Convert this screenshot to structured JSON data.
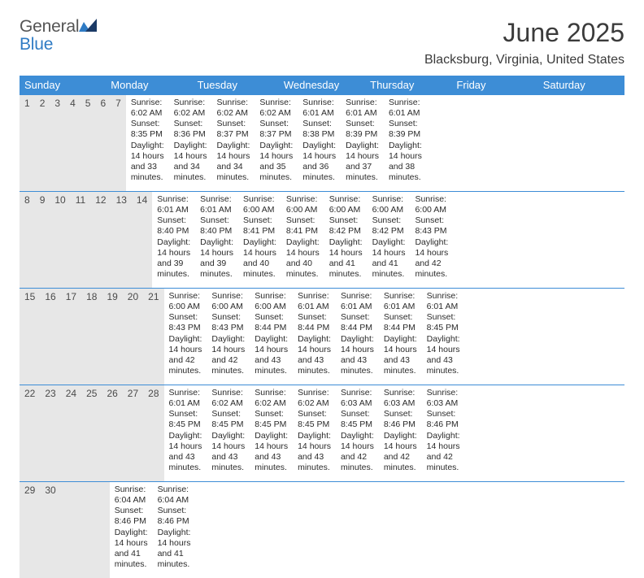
{
  "logo": {
    "word1": "General",
    "word2": "Blue"
  },
  "colors": {
    "header_bg": "#3d8dd6",
    "header_text": "#ffffff",
    "daynum_bg": "#e7e7e7",
    "daynum_text": "#4a4a4a",
    "body_text": "#2b2b2b",
    "rule": "#3d8dd6",
    "logo_gray": "#555555",
    "logo_blue": "#2f7bc4",
    "page_bg": "#ffffff"
  },
  "title": "June 2025",
  "location": "Blacksburg, Virginia, United States",
  "day_names": [
    "Sunday",
    "Monday",
    "Tuesday",
    "Wednesday",
    "Thursday",
    "Friday",
    "Saturday"
  ],
  "weeks": [
    [
      {
        "n": "1",
        "sunrise": "Sunrise: 6:02 AM",
        "sunset": "Sunset: 8:35 PM",
        "daylight": "Daylight: 14 hours and 33 minutes."
      },
      {
        "n": "2",
        "sunrise": "Sunrise: 6:02 AM",
        "sunset": "Sunset: 8:36 PM",
        "daylight": "Daylight: 14 hours and 34 minutes."
      },
      {
        "n": "3",
        "sunrise": "Sunrise: 6:02 AM",
        "sunset": "Sunset: 8:37 PM",
        "daylight": "Daylight: 14 hours and 34 minutes."
      },
      {
        "n": "4",
        "sunrise": "Sunrise: 6:02 AM",
        "sunset": "Sunset: 8:37 PM",
        "daylight": "Daylight: 14 hours and 35 minutes."
      },
      {
        "n": "5",
        "sunrise": "Sunrise: 6:01 AM",
        "sunset": "Sunset: 8:38 PM",
        "daylight": "Daylight: 14 hours and 36 minutes."
      },
      {
        "n": "6",
        "sunrise": "Sunrise: 6:01 AM",
        "sunset": "Sunset: 8:39 PM",
        "daylight": "Daylight: 14 hours and 37 minutes."
      },
      {
        "n": "7",
        "sunrise": "Sunrise: 6:01 AM",
        "sunset": "Sunset: 8:39 PM",
        "daylight": "Daylight: 14 hours and 38 minutes."
      }
    ],
    [
      {
        "n": "8",
        "sunrise": "Sunrise: 6:01 AM",
        "sunset": "Sunset: 8:40 PM",
        "daylight": "Daylight: 14 hours and 39 minutes."
      },
      {
        "n": "9",
        "sunrise": "Sunrise: 6:01 AM",
        "sunset": "Sunset: 8:40 PM",
        "daylight": "Daylight: 14 hours and 39 minutes."
      },
      {
        "n": "10",
        "sunrise": "Sunrise: 6:00 AM",
        "sunset": "Sunset: 8:41 PM",
        "daylight": "Daylight: 14 hours and 40 minutes."
      },
      {
        "n": "11",
        "sunrise": "Sunrise: 6:00 AM",
        "sunset": "Sunset: 8:41 PM",
        "daylight": "Daylight: 14 hours and 40 minutes."
      },
      {
        "n": "12",
        "sunrise": "Sunrise: 6:00 AM",
        "sunset": "Sunset: 8:42 PM",
        "daylight": "Daylight: 14 hours and 41 minutes."
      },
      {
        "n": "13",
        "sunrise": "Sunrise: 6:00 AM",
        "sunset": "Sunset: 8:42 PM",
        "daylight": "Daylight: 14 hours and 41 minutes."
      },
      {
        "n": "14",
        "sunrise": "Sunrise: 6:00 AM",
        "sunset": "Sunset: 8:43 PM",
        "daylight": "Daylight: 14 hours and 42 minutes."
      }
    ],
    [
      {
        "n": "15",
        "sunrise": "Sunrise: 6:00 AM",
        "sunset": "Sunset: 8:43 PM",
        "daylight": "Daylight: 14 hours and 42 minutes."
      },
      {
        "n": "16",
        "sunrise": "Sunrise: 6:00 AM",
        "sunset": "Sunset: 8:43 PM",
        "daylight": "Daylight: 14 hours and 42 minutes."
      },
      {
        "n": "17",
        "sunrise": "Sunrise: 6:00 AM",
        "sunset": "Sunset: 8:44 PM",
        "daylight": "Daylight: 14 hours and 43 minutes."
      },
      {
        "n": "18",
        "sunrise": "Sunrise: 6:01 AM",
        "sunset": "Sunset: 8:44 PM",
        "daylight": "Daylight: 14 hours and 43 minutes."
      },
      {
        "n": "19",
        "sunrise": "Sunrise: 6:01 AM",
        "sunset": "Sunset: 8:44 PM",
        "daylight": "Daylight: 14 hours and 43 minutes."
      },
      {
        "n": "20",
        "sunrise": "Sunrise: 6:01 AM",
        "sunset": "Sunset: 8:44 PM",
        "daylight": "Daylight: 14 hours and 43 minutes."
      },
      {
        "n": "21",
        "sunrise": "Sunrise: 6:01 AM",
        "sunset": "Sunset: 8:45 PM",
        "daylight": "Daylight: 14 hours and 43 minutes."
      }
    ],
    [
      {
        "n": "22",
        "sunrise": "Sunrise: 6:01 AM",
        "sunset": "Sunset: 8:45 PM",
        "daylight": "Daylight: 14 hours and 43 minutes."
      },
      {
        "n": "23",
        "sunrise": "Sunrise: 6:02 AM",
        "sunset": "Sunset: 8:45 PM",
        "daylight": "Daylight: 14 hours and 43 minutes."
      },
      {
        "n": "24",
        "sunrise": "Sunrise: 6:02 AM",
        "sunset": "Sunset: 8:45 PM",
        "daylight": "Daylight: 14 hours and 43 minutes."
      },
      {
        "n": "25",
        "sunrise": "Sunrise: 6:02 AM",
        "sunset": "Sunset: 8:45 PM",
        "daylight": "Daylight: 14 hours and 43 minutes."
      },
      {
        "n": "26",
        "sunrise": "Sunrise: 6:03 AM",
        "sunset": "Sunset: 8:45 PM",
        "daylight": "Daylight: 14 hours and 42 minutes."
      },
      {
        "n": "27",
        "sunrise": "Sunrise: 6:03 AM",
        "sunset": "Sunset: 8:46 PM",
        "daylight": "Daylight: 14 hours and 42 minutes."
      },
      {
        "n": "28",
        "sunrise": "Sunrise: 6:03 AM",
        "sunset": "Sunset: 8:46 PM",
        "daylight": "Daylight: 14 hours and 42 minutes."
      }
    ],
    [
      {
        "n": "29",
        "sunrise": "Sunrise: 6:04 AM",
        "sunset": "Sunset: 8:46 PM",
        "daylight": "Daylight: 14 hours and 41 minutes."
      },
      {
        "n": "30",
        "sunrise": "Sunrise: 6:04 AM",
        "sunset": "Sunset: 8:46 PM",
        "daylight": "Daylight: 14 hours and 41 minutes."
      },
      {
        "n": "",
        "sunrise": "",
        "sunset": "",
        "daylight": ""
      },
      {
        "n": "",
        "sunrise": "",
        "sunset": "",
        "daylight": ""
      },
      {
        "n": "",
        "sunrise": "",
        "sunset": "",
        "daylight": ""
      },
      {
        "n": "",
        "sunrise": "",
        "sunset": "",
        "daylight": ""
      },
      {
        "n": "",
        "sunrise": "",
        "sunset": "",
        "daylight": ""
      }
    ]
  ]
}
